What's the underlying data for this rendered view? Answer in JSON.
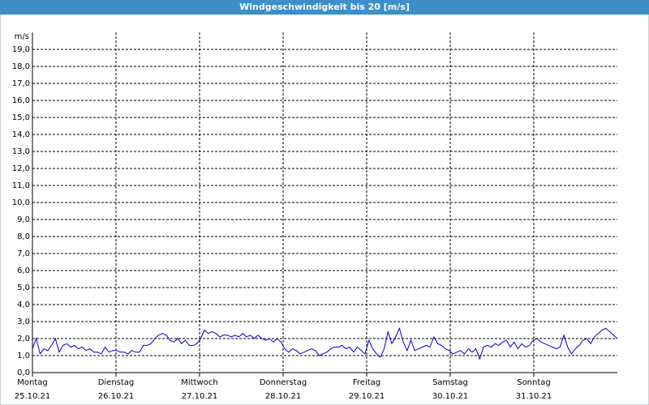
{
  "chart_data": {
    "type": "line",
    "title": "Windgeschwindigkeit bis 20 [m/s]",
    "y_label": "m/s",
    "x_ticks": [
      {
        "day": "Montag",
        "date": "25.10.21"
      },
      {
        "day": "Dienstag",
        "date": "26.10.21"
      },
      {
        "day": "Mittwoch",
        "date": "27.10.21"
      },
      {
        "day": "Donnerstag",
        "date": "28.10.21"
      },
      {
        "day": "Freitag",
        "date": "29.10.21"
      },
      {
        "day": "Samstag",
        "date": "30.10.21"
      },
      {
        "day": "Sonntag",
        "date": "31.10.21"
      }
    ],
    "series": [
      {
        "color": "#0000cc",
        "values": [
          1.4,
          2.0,
          1.1,
          1.4,
          1.3,
          1.6,
          2.0,
          1.2,
          1.6,
          1.7,
          1.5,
          1.6,
          1.4,
          1.5,
          1.3,
          1.4,
          1.2,
          1.2,
          1.1,
          1.5,
          1.2,
          1.3,
          1.3,
          1.2,
          1.2,
          1.1,
          1.3,
          1.2,
          1.2,
          1.6,
          1.6,
          1.7,
          2.0,
          2.2,
          2.3,
          2.2,
          1.9,
          1.8,
          2.0,
          1.7,
          1.9,
          1.6,
          1.6,
          1.7,
          2.0,
          2.5,
          2.3,
          2.4,
          2.3,
          2.1,
          2.2,
          2.2,
          2.1,
          2.2,
          2.1,
          2.3,
          2.1,
          2.2,
          2.0,
          2.2,
          2.0,
          1.9,
          2.0,
          1.8,
          2.0,
          1.8,
          1.4,
          1.2,
          1.4,
          1.3,
          1.1,
          1.2,
          1.3,
          1.4,
          1.3,
          1.0,
          1.1,
          1.2,
          1.4,
          1.5,
          1.5,
          1.6,
          1.4,
          1.5,
          1.2,
          1.5,
          1.3,
          1.1,
          1.9,
          1.4,
          1.1,
          0.9,
          1.4,
          2.4,
          1.7,
          2.1,
          2.6,
          1.8,
          1.3,
          1.9,
          1.3,
          1.4,
          1.5,
          1.6,
          1.5,
          2.1,
          1.7,
          1.6,
          1.4,
          1.3,
          1.1,
          1.2,
          1.3,
          1.1,
          1.4,
          1.2,
          1.4,
          0.8,
          1.5,
          1.6,
          1.5,
          1.7,
          1.6,
          1.8,
          1.9,
          1.5,
          1.8,
          1.4,
          1.7,
          1.5,
          1.6,
          1.9,
          2.0,
          1.8,
          1.7,
          1.6,
          1.5,
          1.4,
          1.5,
          2.2,
          1.5,
          1.1,
          1.4,
          1.6,
          1.9,
          2.0,
          1.7,
          2.1,
          2.3,
          2.5,
          2.6,
          2.4,
          2.2,
          2.0
        ]
      }
    ],
    "ylim": [
      0,
      20
    ],
    "yticks": [
      {
        "value": 0,
        "label": "0,0"
      },
      {
        "value": 1,
        "label": "1,0"
      },
      {
        "value": 2,
        "label": "2,0"
      },
      {
        "value": 3,
        "label": "3,0"
      },
      {
        "value": 4,
        "label": "4,0"
      },
      {
        "value": 5,
        "label": "5,0"
      },
      {
        "value": 6,
        "label": "6,0"
      },
      {
        "value": 7,
        "label": "7,0"
      },
      {
        "value": 8,
        "label": "8,0"
      },
      {
        "value": 9,
        "label": "9,0"
      },
      {
        "value": 10,
        "label": "10,0"
      },
      {
        "value": 11,
        "label": "11,0"
      },
      {
        "value": 12,
        "label": "12,0"
      },
      {
        "value": 13,
        "label": "13,0"
      },
      {
        "value": 14,
        "label": "14,0"
      },
      {
        "value": 15,
        "label": "15,0"
      },
      {
        "value": 16,
        "label": "16,0"
      },
      {
        "value": 17,
        "label": "17,0"
      },
      {
        "value": 18,
        "label": "18,0"
      },
      {
        "value": 19,
        "label": "19,0"
      }
    ],
    "grid": true
  }
}
